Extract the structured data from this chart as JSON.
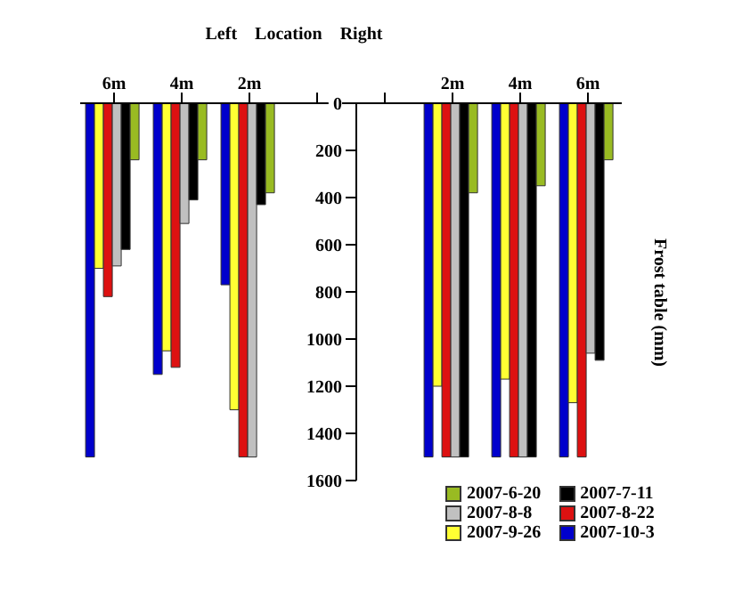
{
  "chart_data": {
    "type": "bar",
    "xlabel": "Left    Location    Right",
    "ylabel": "Frost table (mm)",
    "categories": [
      "6m",
      "4m",
      "2m",
      null,
      null,
      "2m",
      "4m",
      "6m"
    ],
    "series": [
      {
        "name": "2007-10-3",
        "color": "#0000cc",
        "values": [
          1500,
          1150,
          770,
          null,
          null,
          1500,
          1500,
          1500
        ]
      },
      {
        "name": "2007-9-26",
        "color": "#ffff33",
        "values": [
          700,
          1050,
          1300,
          null,
          null,
          1200,
          1170,
          1270
        ]
      },
      {
        "name": "2007-8-22",
        "color": "#dd1111",
        "values": [
          820,
          1120,
          1500,
          null,
          null,
          1500,
          1500,
          1500
        ]
      },
      {
        "name": "2007-8-8",
        "color": "#c0c0c0",
        "values": [
          690,
          510,
          1500,
          null,
          null,
          1500,
          1500,
          1060
        ]
      },
      {
        "name": "2007-7-11",
        "color": "#000000",
        "values": [
          620,
          410,
          430,
          null,
          null,
          1500,
          1500,
          1090
        ]
      },
      {
        "name": "2007-6-20",
        "color": "#99bb22",
        "values": [
          240,
          240,
          380,
          null,
          null,
          380,
          350,
          240
        ]
      }
    ],
    "ylim": [
      1600,
      0
    ],
    "yticks": [
      0,
      200,
      400,
      600,
      800,
      1000,
      1200,
      1400,
      1600
    ],
    "grid": false,
    "legend": "bottom right"
  }
}
